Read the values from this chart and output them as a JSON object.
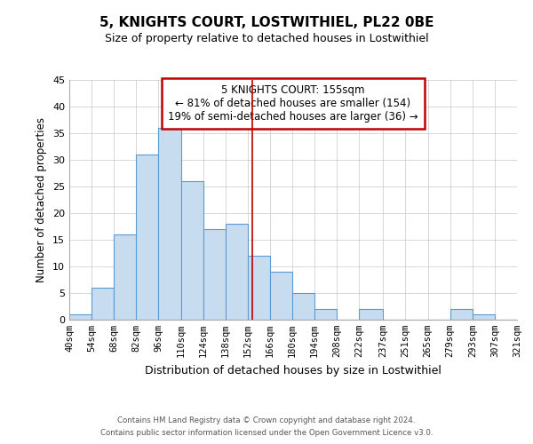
{
  "title": "5, KNIGHTS COURT, LOSTWITHIEL, PL22 0BE",
  "subtitle": "Size of property relative to detached houses in Lostwithiel",
  "xlabel": "Distribution of detached houses by size in Lostwithiel",
  "ylabel": "Number of detached properties",
  "bar_labels": [
    "40sqm",
    "54sqm",
    "68sqm",
    "82sqm",
    "96sqm",
    "110sqm",
    "124sqm",
    "138sqm",
    "152sqm",
    "166sqm",
    "180sqm",
    "194sqm",
    "208sqm",
    "222sqm",
    "237sqm",
    "251sqm",
    "265sqm",
    "279sqm",
    "293sqm",
    "307sqm",
    "321sqm"
  ],
  "bar_values": [
    1,
    6,
    16,
    31,
    36,
    26,
    17,
    18,
    12,
    9,
    5,
    2,
    0,
    2,
    0,
    0,
    0,
    2,
    1,
    0
  ],
  "bin_edges": [
    40,
    54,
    68,
    82,
    96,
    110,
    124,
    138,
    152,
    166,
    180,
    194,
    208,
    222,
    237,
    251,
    265,
    279,
    293,
    307,
    321
  ],
  "bar_color": "#c8dcf0",
  "bar_edge_color": "#5b9bd5",
  "vline_x": 155,
  "vline_color": "#c00000",
  "ylim": [
    0,
    45
  ],
  "yticks": [
    0,
    5,
    10,
    15,
    20,
    25,
    30,
    35,
    40,
    45
  ],
  "annotation_title": "5 KNIGHTS COURT: 155sqm",
  "annotation_line1": "← 81% of detached houses are smaller (154)",
  "annotation_line2": "19% of semi-detached houses are larger (36) →",
  "annotation_box_color": "#ffffff",
  "annotation_box_edge": "#c00000",
  "footer1": "Contains HM Land Registry data © Crown copyright and database right 2024.",
  "footer2": "Contains public sector information licensed under the Open Government Licence v3.0.",
  "background_color": "#ffffff",
  "grid_color": "#c8c8c8"
}
